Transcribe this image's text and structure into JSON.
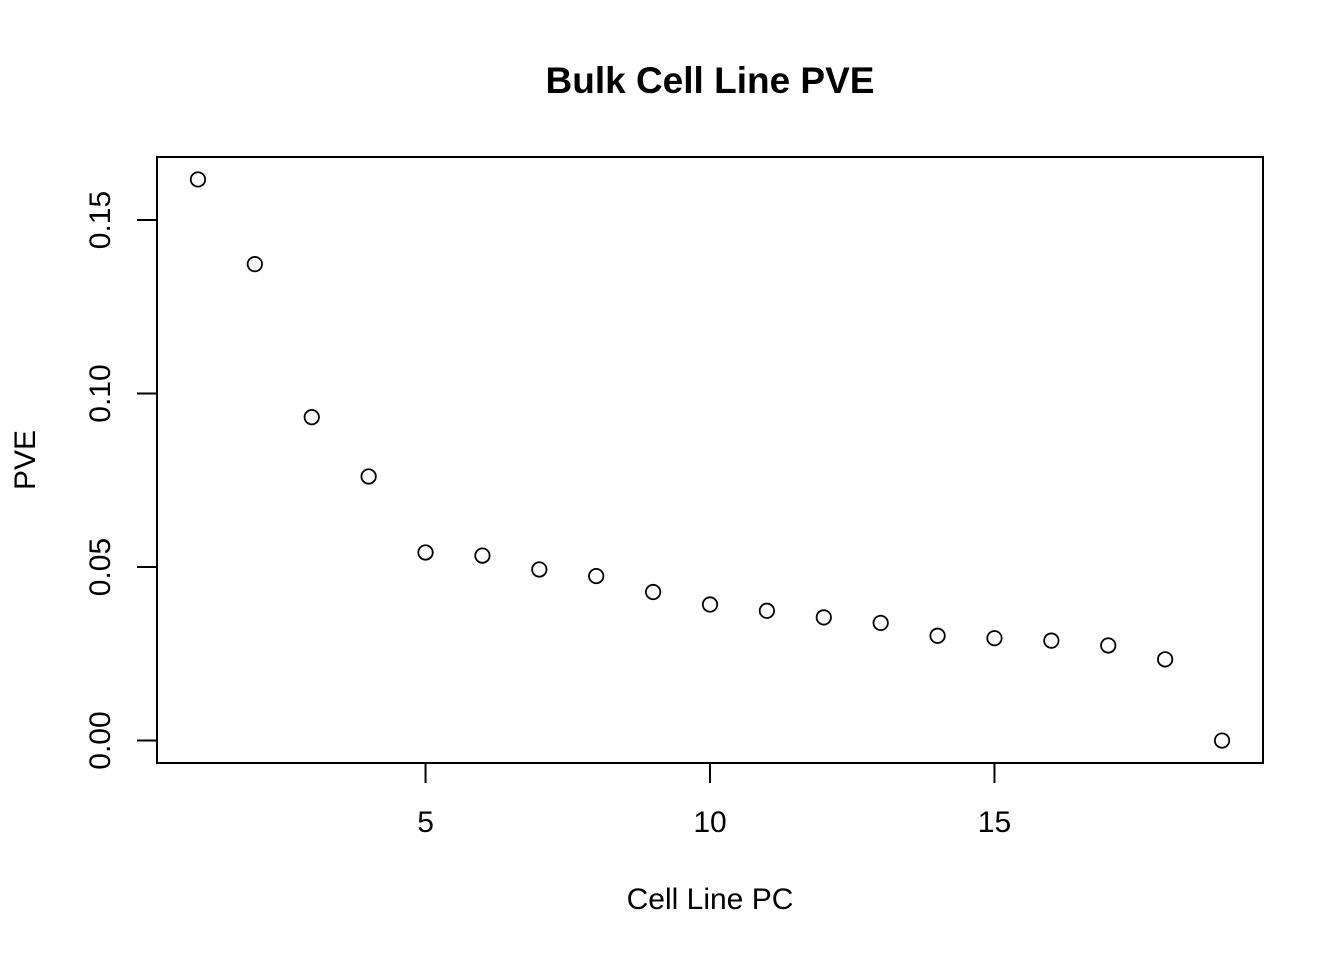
{
  "chart_data": {
    "type": "scatter",
    "title": "Bulk Cell Line PVE",
    "xlabel": "Cell Line PC",
    "ylabel": "PVE",
    "x": [
      1,
      2,
      3,
      4,
      5,
      6,
      7,
      8,
      9,
      10,
      11,
      12,
      13,
      14,
      15,
      16,
      17,
      18,
      19
    ],
    "y": [
      0.1617,
      0.1373,
      0.0932,
      0.0761,
      0.0542,
      0.0533,
      0.0493,
      0.0474,
      0.0428,
      0.0392,
      0.0374,
      0.0355,
      0.0339,
      0.0302,
      0.0295,
      0.0288,
      0.0274,
      0.0234,
      0.0
    ],
    "xlim": [
      0.28,
      19.72
    ],
    "ylim": [
      -0.00647,
      0.16817
    ],
    "xticks": [
      5,
      10,
      15
    ],
    "xtick_labels": [
      "5",
      "10",
      "15"
    ],
    "yticks": [
      0.0,
      0.05,
      0.1,
      0.15
    ],
    "ytick_labels": [
      "0.00",
      "0.05",
      "0.10",
      "0.15"
    ],
    "grid": false,
    "marker": "open-circle",
    "colors": {
      "marker": "#000000",
      "axis": "#000000",
      "background": "#ffffff"
    }
  }
}
